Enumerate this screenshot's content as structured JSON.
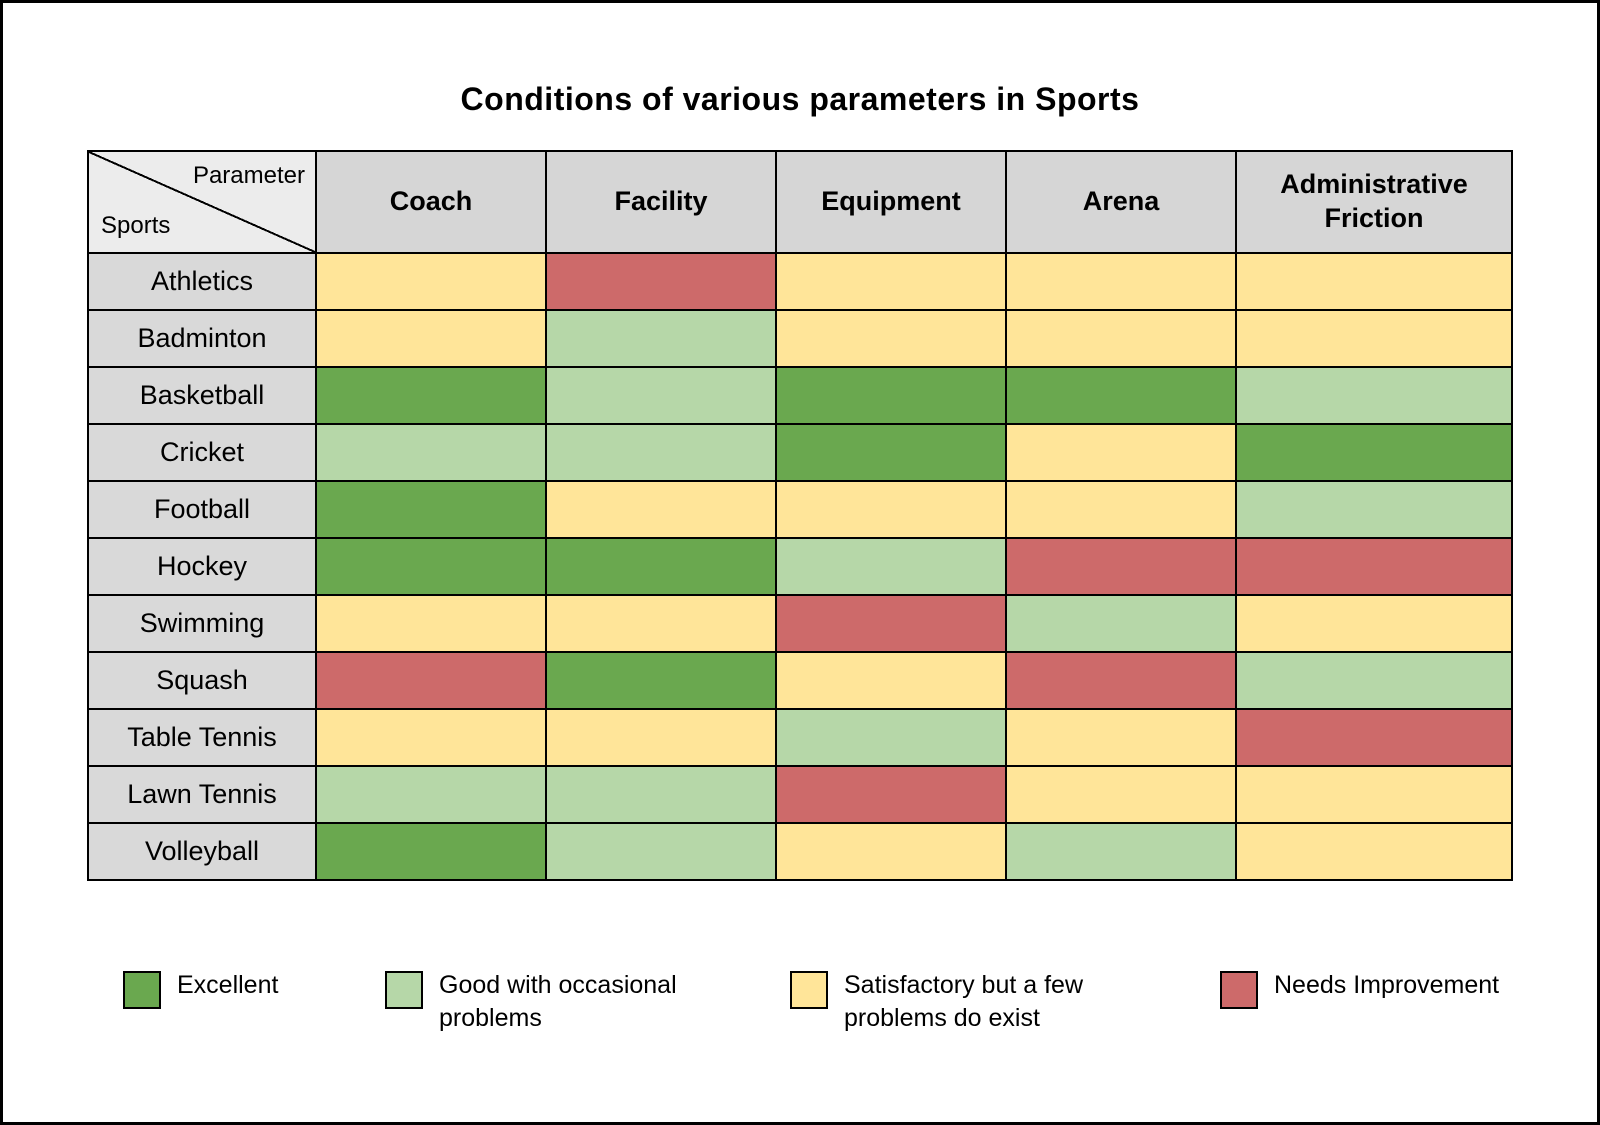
{
  "title": "Conditions of various parameters in Sports",
  "table": {
    "corner_top": "Parameter",
    "corner_bottom": "Sports"
  },
  "chart_data": {
    "type": "heatmap",
    "title": "Conditions of various parameters in Sports",
    "columns": [
      "Coach",
      "Facility",
      "Equipment",
      "Arena",
      "Administrative Friction"
    ],
    "rows": [
      "Athletics",
      "Badminton",
      "Basketball",
      "Cricket",
      "Football",
      "Hockey",
      "Swimming",
      "Squash",
      "Table Tennis",
      "Lawn Tennis",
      "Volleyball"
    ],
    "values": [
      [
        "satisfactory",
        "needs_improvement",
        "satisfactory",
        "satisfactory",
        "satisfactory"
      ],
      [
        "satisfactory",
        "good",
        "satisfactory",
        "satisfactory",
        "satisfactory"
      ],
      [
        "excellent",
        "good",
        "excellent",
        "excellent",
        "good"
      ],
      [
        "good",
        "good",
        "excellent",
        "satisfactory",
        "excellent"
      ],
      [
        "excellent",
        "satisfactory",
        "satisfactory",
        "satisfactory",
        "good"
      ],
      [
        "excellent",
        "excellent",
        "good",
        "needs_improvement",
        "needs_improvement"
      ],
      [
        "satisfactory",
        "satisfactory",
        "needs_improvement",
        "good",
        "satisfactory"
      ],
      [
        "needs_improvement",
        "excellent",
        "satisfactory",
        "needs_improvement",
        "good"
      ],
      [
        "satisfactory",
        "satisfactory",
        "good",
        "satisfactory",
        "needs_improvement"
      ],
      [
        "good",
        "good",
        "needs_improvement",
        "satisfactory",
        "satisfactory"
      ],
      [
        "excellent",
        "good",
        "satisfactory",
        "good",
        "satisfactory"
      ]
    ],
    "scale": {
      "excellent": {
        "label": "Excellent",
        "color": "#6aa84f"
      },
      "good": {
        "label": "Good with occasional problems",
        "color": "#b6d7a8"
      },
      "satisfactory": {
        "label": "Satisfactory but a few problems do exist",
        "color": "#ffe599"
      },
      "needs_improvement": {
        "label": "Needs Improvement",
        "color": "#cd6a6a"
      }
    },
    "legend_order": [
      "excellent",
      "good",
      "satisfactory",
      "needs_improvement"
    ],
    "legend_position": "bottom",
    "grid": true
  }
}
